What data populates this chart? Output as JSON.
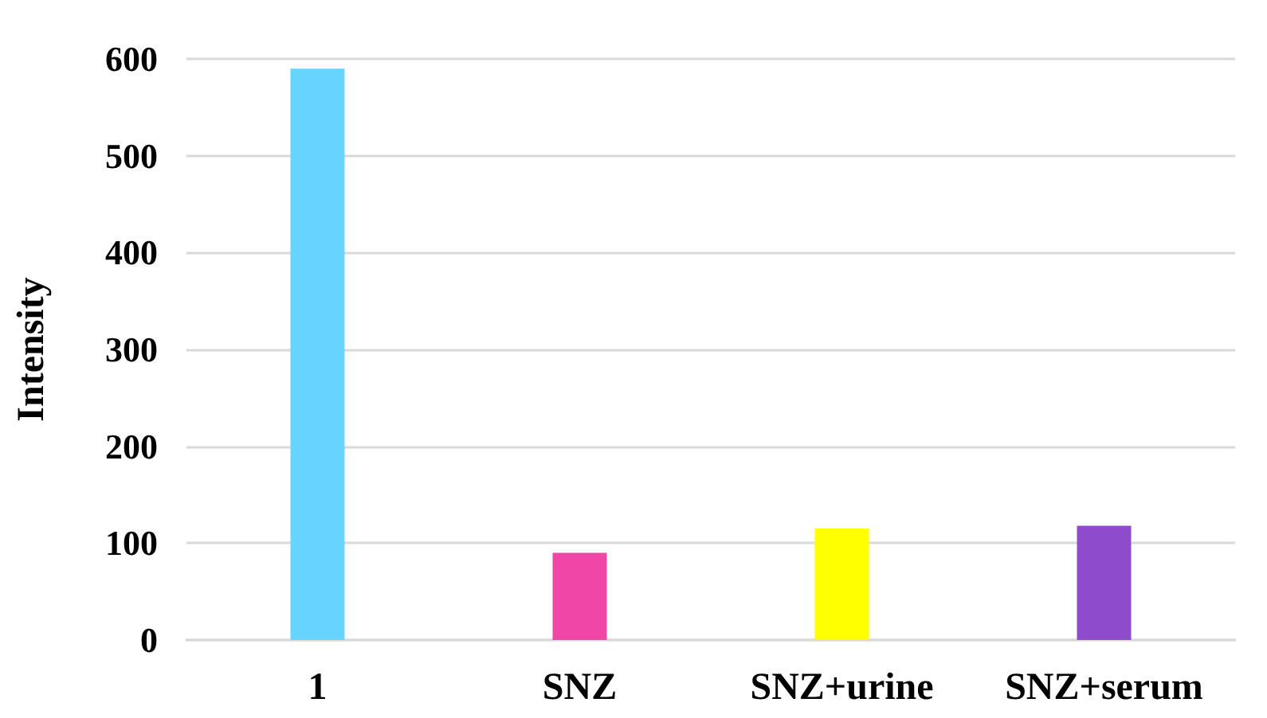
{
  "chart_data": {
    "type": "bar",
    "ylabel": "Intensity",
    "categories": [
      "1",
      "SNZ",
      "SNZ+urine",
      "SNZ+serum"
    ],
    "values": [
      590,
      90,
      115,
      118
    ],
    "colors": [
      "#66d4ff",
      "#f046a8",
      "#ffff00",
      "#8e4ccc"
    ],
    "ylim": [
      0,
      600
    ],
    "yticks": [
      0,
      100,
      200,
      300,
      400,
      500,
      600
    ],
    "grid": "y"
  }
}
